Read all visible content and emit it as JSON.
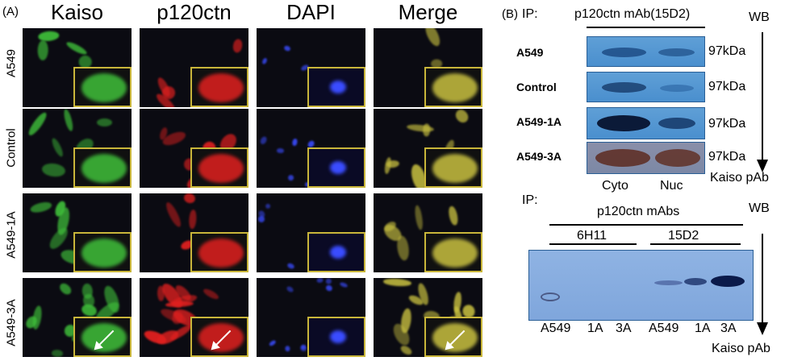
{
  "panel_a": {
    "label": "(A)",
    "columns": [
      "Kaiso",
      "p120ctn",
      "DAPI",
      "Merge"
    ],
    "rows": [
      "A549",
      "Control",
      "A549-1A",
      "A549-3A"
    ]
  },
  "panel_b_top": {
    "label": "(B)",
    "ip": "IP:",
    "ip_antibody": "p120ctn mAb(15D2)",
    "wb": "WB",
    "rows": [
      "A549",
      "Control",
      "A549-1A",
      "A549-3A"
    ],
    "kda": [
      "97kDa",
      "97kDa",
      "97kDa",
      "97kDa"
    ],
    "fractions": [
      "Cyto",
      "Nuc"
    ],
    "kaiso": "Kaiso pAb"
  },
  "panel_b_bottom": {
    "ip": "IP:",
    "ip_antibody": "p120ctn mAbs",
    "wb": "WB",
    "groups": [
      "6H11",
      "15D2"
    ],
    "lanes": [
      "A549",
      "1A",
      "3A",
      "A549",
      "1A",
      "3A"
    ],
    "kaiso": "Kaiso pAb"
  },
  "colors": {
    "green": "#3fbf3a",
    "red": "#e0201f",
    "blue": "#3a4cff",
    "merge": "#c8c040",
    "inset_border": "#c9b63a",
    "blot": "#5a9ad4"
  }
}
